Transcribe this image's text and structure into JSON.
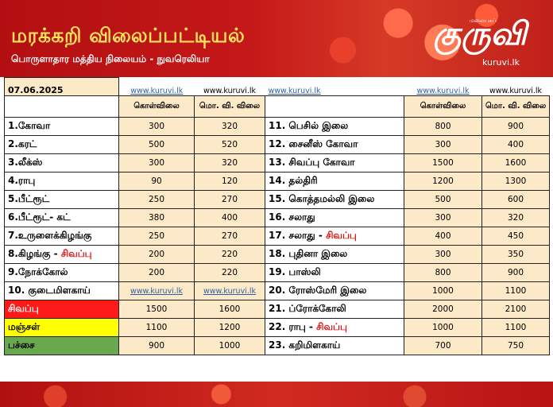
{
  "banner": {
    "title": "மரக்கறி விலைப்பட்டியல்",
    "subtitle": "பொருளாதார மத்திய நிலையம் - நுவரெலியா",
    "logo_mark": "குருவி",
    "logo_tag": "மலையகப்",
    "logo_site": "kuruvi.lk"
  },
  "date": "07.06.2025",
  "site": "www.kuruvi.lk",
  "headers": {
    "wholesale": "கொள்விலை",
    "retail": "மொ. வி. விலை"
  },
  "left": [
    {
      "name": "1.கோவா",
      "w": "300",
      "r": "320"
    },
    {
      "name": "2.கரட்",
      "w": "500",
      "r": "520"
    },
    {
      "name": "3.லீக்ஸ்",
      "w": "300",
      "r": "320"
    },
    {
      "name": "4.ராபு",
      "w": "90",
      "r": "120"
    },
    {
      "name": "5.பீட்ரூட்",
      "w": "250",
      "r": "270"
    },
    {
      "name": "6.பீட்ரூட்- கட்",
      "w": "380",
      "r": "400"
    },
    {
      "name": "7.உருளைக்கிழங்கு",
      "w": "250",
      "r": "270"
    },
    {
      "name": "8.கிழங்கு - ",
      "red": "சிவப்பு",
      "w": "200",
      "r": "220"
    },
    {
      "name": "9.நோக்கோல்",
      "w": "200",
      "r": "220"
    },
    {
      "name": "10. குடைமிளகாய்",
      "w": "www.kuruvi.lk",
      "r": "www.kuruvi.lk",
      "link": true
    },
    {
      "name": "சிவப்பு",
      "w": "1500",
      "r": "1600",
      "cls": "redcell"
    },
    {
      "name": "மஞ்சள்",
      "w": "1100",
      "r": "1200",
      "cls": "yellowcell"
    },
    {
      "name": "பச்சை",
      "w": "900",
      "r": "1000",
      "cls": "greencell"
    }
  ],
  "right": [
    {
      "name": "11. பெசில் இலை",
      "w": "800",
      "r": "900"
    },
    {
      "name": "12. சைனீஸ் கோவா",
      "w": "300",
      "r": "400"
    },
    {
      "name": "13. சிவப்பு கோவா",
      "w": "1500",
      "r": "1600"
    },
    {
      "name": "14. தல்திரி",
      "w": "1200",
      "r": "1300"
    },
    {
      "name": "15. கொத்தமல்லி இலை",
      "w": "500",
      "r": "600"
    },
    {
      "name": "16. சலாது",
      "w": "300",
      "r": "320"
    },
    {
      "name": "17. சலாது - ",
      "red": "சிவப்பு",
      "w": "400",
      "r": "450"
    },
    {
      "name": "18. புதினா இலை",
      "w": "300",
      "r": "350"
    },
    {
      "name": "19. பாஸ்லி",
      "w": "800",
      "r": "900"
    },
    {
      "name": "20. ரோஸ்மேரி இலை",
      "w": "1000",
      "r": "1100"
    },
    {
      "name": "21. ப்ரோக்கோலி",
      "w": "2000",
      "r": "2100"
    },
    {
      "name": "22. ராபு - ",
      "red": "சிவப்பு",
      "w": "1000",
      "r": "1100"
    },
    {
      "name": "23. கறிமிளகாய்",
      "w": "700",
      "r": "750"
    }
  ]
}
